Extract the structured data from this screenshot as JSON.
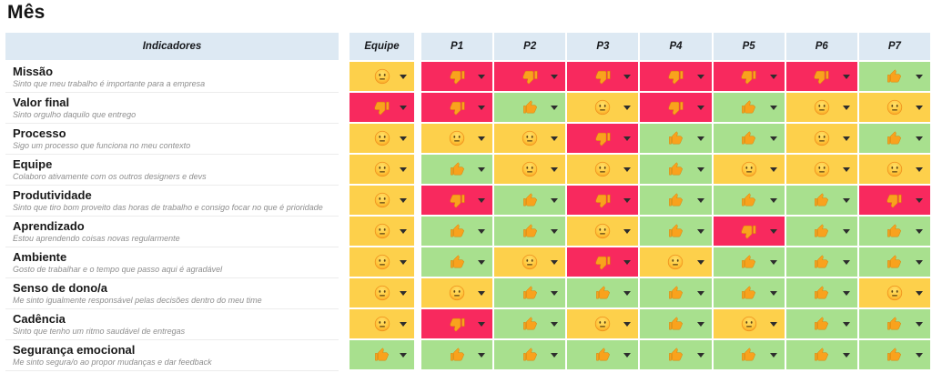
{
  "title": "Mês",
  "colors": {
    "good_bg": "#a8e08e",
    "neutral_bg": "#fdd04b",
    "bad_bg": "#f8295e",
    "header_bg": "#dde9f3"
  },
  "icons": {
    "good": "thumbs-up-icon",
    "neutral": "neutral-face-icon",
    "bad": "thumbs-down-icon",
    "dropdown": "caret-down-icon"
  },
  "table": {
    "indicators_header": "Indicadores",
    "team_header": "Equipe",
    "person_headers": [
      "P1",
      "P2",
      "P3",
      "P4",
      "P5",
      "P6",
      "P7"
    ],
    "rows": [
      {
        "label": "Missão",
        "description": "Sinto que meu trabalho é importante para a empresa",
        "team": "neutral",
        "cells": [
          "bad",
          "bad",
          "bad",
          "bad",
          "bad",
          "bad",
          "good"
        ]
      },
      {
        "label": "Valor final",
        "description": "Sinto orgulho daquilo que entrego",
        "team": "bad",
        "cells": [
          "bad",
          "good",
          "neutral",
          "bad",
          "good",
          "neutral",
          "neutral"
        ]
      },
      {
        "label": "Processo",
        "description": "Sigo um processo que funciona no meu contexto",
        "team": "neutral",
        "cells": [
          "neutral",
          "neutral",
          "bad",
          "good",
          "good",
          "neutral",
          "good"
        ]
      },
      {
        "label": "Equipe",
        "description": "Colaboro ativamente com os outros designers e devs",
        "team": "neutral",
        "cells": [
          "good",
          "neutral",
          "neutral",
          "good",
          "neutral",
          "neutral",
          "neutral"
        ]
      },
      {
        "label": "Produtividade",
        "description": "Sinto que tiro bom proveito das horas de trabalho e consigo focar no que é prioridade",
        "team": "neutral",
        "cells": [
          "bad",
          "good",
          "bad",
          "good",
          "good",
          "good",
          "bad"
        ]
      },
      {
        "label": "Aprendizado",
        "description": "Estou aprendendo coisas novas regularmente",
        "team": "neutral",
        "cells": [
          "good",
          "good",
          "neutral",
          "good",
          "bad",
          "good",
          "good"
        ]
      },
      {
        "label": "Ambiente",
        "description": "Gosto de trabalhar e o tempo que passo aqui é agradável",
        "team": "neutral",
        "cells": [
          "good",
          "neutral",
          "bad",
          "neutral",
          "good",
          "good",
          "good"
        ]
      },
      {
        "label": "Senso de dono/a",
        "description": "Me sinto igualmente responsável pelas decisões dentro do meu time",
        "team": "neutral",
        "cells": [
          "neutral",
          "good",
          "good",
          "good",
          "good",
          "good",
          "neutral"
        ]
      },
      {
        "label": "Cadência",
        "description": "Sinto que tenho um ritmo saudável de entregas",
        "team": "neutral",
        "cells": [
          "bad",
          "good",
          "neutral",
          "good",
          "neutral",
          "good",
          "good"
        ]
      },
      {
        "label": "Segurança emocional",
        "description": "Me sinto segura/o ao propor mudanças e dar feedback",
        "team": "good",
        "cells": [
          "good",
          "good",
          "good",
          "good",
          "good",
          "good",
          "good"
        ]
      }
    ]
  }
}
